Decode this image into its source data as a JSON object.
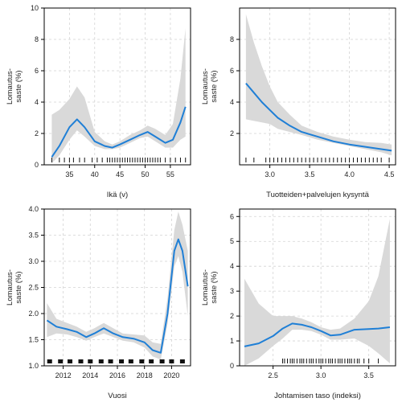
{
  "chart_data": [
    {
      "type": "line",
      "xlabel": "Ikä (v)",
      "ylabel_lines": [
        "Lomautus-",
        "saste (%)"
      ],
      "xlim": [
        30,
        59
      ],
      "ylim": [
        0,
        10
      ],
      "xticks": [
        35,
        40,
        45,
        50,
        55
      ],
      "yticks": [
        0,
        2,
        4,
        6,
        8,
        10
      ],
      "grid": true,
      "band_color": "#d9d9d9",
      "line_color": "#1f7fd6",
      "x": [
        31.5,
        33,
        35,
        36.5,
        38,
        40,
        42,
        43.5,
        45,
        47,
        49,
        50.5,
        52,
        54,
        55.5,
        57,
        58
      ],
      "y": [
        0.5,
        1.2,
        2.4,
        2.9,
        2.4,
        1.5,
        1.2,
        1.1,
        1.3,
        1.6,
        1.9,
        2.1,
        1.8,
        1.4,
        1.6,
        2.7,
        3.7
      ],
      "lower": [
        0.1,
        0.6,
        1.6,
        2.2,
        1.8,
        1.2,
        1.0,
        1.0,
        1.1,
        1.4,
        1.7,
        1.8,
        1.5,
        1.1,
        1.1,
        1.6,
        1.8
      ],
      "upper": [
        3.2,
        3.5,
        4.2,
        5.0,
        4.3,
        2.1,
        1.5,
        1.3,
        1.5,
        1.9,
        2.2,
        2.5,
        2.3,
        1.9,
        2.6,
        5.5,
        8.7
      ],
      "rug": [
        31.5,
        33,
        34,
        35,
        35.8,
        37,
        38,
        39.5,
        40.5,
        41.5,
        42.5,
        43,
        43.5,
        44,
        44.5,
        45,
        45.5,
        46,
        46.5,
        47,
        47.5,
        48,
        48.5,
        49,
        49.5,
        50,
        50.5,
        51,
        51.5,
        52,
        52.5,
        53,
        54,
        55,
        56,
        57,
        58
      ]
    },
    {
      "type": "line",
      "xlabel": "Tuotteiden+palvelujen kysyntä",
      "ylabel_lines": [
        "Lomautus-",
        "saste (%)"
      ],
      "xlim": [
        2.62,
        4.58
      ],
      "ylim": [
        0,
        10
      ],
      "xticks": [
        3.0,
        3.5,
        4.0,
        4.5
      ],
      "yticks": [
        2,
        4,
        6,
        8
      ],
      "grid": true,
      "band_color": "#d9d9d9",
      "line_color": "#1f7fd6",
      "x": [
        2.7,
        2.8,
        2.9,
        3.0,
        3.1,
        3.25,
        3.4,
        3.6,
        3.8,
        4.0,
        4.2,
        4.4,
        4.53
      ],
      "y": [
        5.2,
        4.6,
        4.0,
        3.5,
        3.0,
        2.5,
        2.1,
        1.8,
        1.5,
        1.3,
        1.15,
        1.0,
        0.9
      ],
      "lower": [
        2.9,
        2.8,
        2.7,
        2.6,
        2.3,
        2.1,
        1.9,
        1.6,
        1.4,
        1.2,
        1.0,
        0.8,
        0.6
      ],
      "upper": [
        9.6,
        7.8,
        6.3,
        5.0,
        4.0,
        3.2,
        2.5,
        2.1,
        1.8,
        1.6,
        1.45,
        1.4,
        1.3
      ],
      "rug": [
        2.7,
        2.8,
        2.95,
        3.0,
        3.05,
        3.1,
        3.15,
        3.2,
        3.25,
        3.3,
        3.35,
        3.4,
        3.45,
        3.5,
        3.55,
        3.6,
        3.65,
        3.7,
        3.75,
        3.8,
        3.85,
        3.9,
        3.95,
        4.0,
        4.05,
        4.1,
        4.15,
        4.2,
        4.25,
        4.3,
        4.35,
        4.4,
        4.5
      ]
    },
    {
      "type": "line",
      "xlabel": "Vuosi",
      "ylabel_lines": [
        "Lomautus-",
        "saste (%)"
      ],
      "xlim": [
        2010.6,
        2021.4
      ],
      "ylim": [
        1.0,
        4.0
      ],
      "xticks": [
        2012,
        2014,
        2016,
        2018,
        2020
      ],
      "yticks": [
        1.0,
        1.5,
        2.0,
        2.5,
        3.0,
        3.5,
        4.0
      ],
      "grid": true,
      "band_color": "#d9d9d9",
      "line_color": "#1f7fd6",
      "x": [
        2010.8,
        2011.5,
        2012.3,
        2013,
        2013.7,
        2014.3,
        2015,
        2015.7,
        2016.4,
        2017.2,
        2018,
        2018.6,
        2019.2,
        2019.7,
        2020.2,
        2020.5,
        2020.8,
        2021.2
      ],
      "y": [
        1.87,
        1.75,
        1.7,
        1.65,
        1.55,
        1.62,
        1.72,
        1.62,
        1.55,
        1.52,
        1.45,
        1.3,
        1.25,
        2.0,
        3.2,
        3.42,
        3.2,
        2.52
      ],
      "lower": [
        1.55,
        1.62,
        1.6,
        1.55,
        1.48,
        1.55,
        1.62,
        1.55,
        1.48,
        1.45,
        1.35,
        1.18,
        1.12,
        1.8,
        2.9,
        3.1,
        2.8,
        1.95
      ],
      "upper": [
        2.2,
        1.9,
        1.82,
        1.75,
        1.65,
        1.72,
        1.82,
        1.72,
        1.62,
        1.6,
        1.58,
        1.45,
        1.42,
        2.3,
        3.6,
        3.95,
        3.7,
        3.2
      ],
      "rug": [
        2011,
        2011.8,
        2012.5,
        2013.3,
        2014,
        2014.8,
        2015.5,
        2016.3,
        2017,
        2017.8,
        2018.5,
        2019.3,
        2020,
        2020.8
      ],
      "rug_style": "squares"
    },
    {
      "type": "line",
      "xlabel": "Johtamisen taso (indeksi)",
      "ylabel_lines": [
        "Lomautus-",
        "saste (%)"
      ],
      "xlim": [
        2.15,
        3.78
      ],
      "ylim": [
        0,
        6.3
      ],
      "xticks": [
        2.5,
        3.0,
        3.5
      ],
      "yticks": [
        0,
        1,
        2,
        3,
        4,
        5,
        6
      ],
      "grid": true,
      "band_color": "#d9d9d9",
      "line_color": "#1f7fd6",
      "x": [
        2.2,
        2.35,
        2.5,
        2.6,
        2.7,
        2.8,
        2.9,
        3.0,
        3.1,
        3.2,
        3.35,
        3.5,
        3.6,
        3.72
      ],
      "y": [
        0.78,
        0.9,
        1.2,
        1.5,
        1.7,
        1.65,
        1.55,
        1.4,
        1.22,
        1.25,
        1.45,
        1.48,
        1.5,
        1.55
      ],
      "lower": [
        0.0,
        0.3,
        0.8,
        1.1,
        1.45,
        1.45,
        1.4,
        1.25,
        1.05,
        1.05,
        1.1,
        0.8,
        0.5,
        0.1
      ],
      "upper": [
        3.5,
        2.5,
        2.0,
        2.0,
        2.0,
        1.9,
        1.75,
        1.55,
        1.45,
        1.5,
        1.9,
        2.6,
        3.6,
        5.9
      ],
      "rug": [
        2.6,
        2.62,
        2.65,
        2.68,
        2.7,
        2.72,
        2.75,
        2.78,
        2.8,
        2.82,
        2.85,
        2.88,
        2.9,
        2.92,
        2.95,
        2.98,
        3.0,
        3.02,
        3.05,
        3.08,
        3.1,
        3.12,
        3.15,
        3.18,
        3.2,
        3.22,
        3.25,
        3.28,
        3.3,
        3.32,
        3.35,
        3.38,
        3.4,
        3.45,
        3.5,
        3.6
      ]
    }
  ]
}
